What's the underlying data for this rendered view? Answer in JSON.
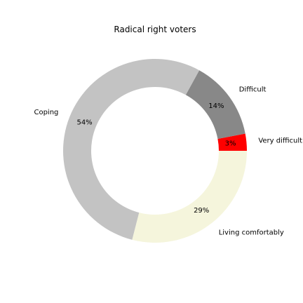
{
  "chart_data": {
    "type": "pie",
    "variant": "donut",
    "title": "Radical right voters",
    "slices": [
      {
        "label": "Very difficult",
        "value": 3,
        "pct_label": "3%",
        "color": "#ff0000"
      },
      {
        "label": "Difficult",
        "value": 14,
        "pct_label": "14%",
        "color": "#888888"
      },
      {
        "label": "Coping",
        "value": 54,
        "pct_label": "54%",
        "color": "#c3c3c3"
      },
      {
        "label": "Living comfortably",
        "value": 29,
        "pct_label": "29%",
        "color": "#f5f5dc"
      }
    ],
    "start_angle_deg": 0,
    "direction": "counterclockwise",
    "legend": "none"
  }
}
